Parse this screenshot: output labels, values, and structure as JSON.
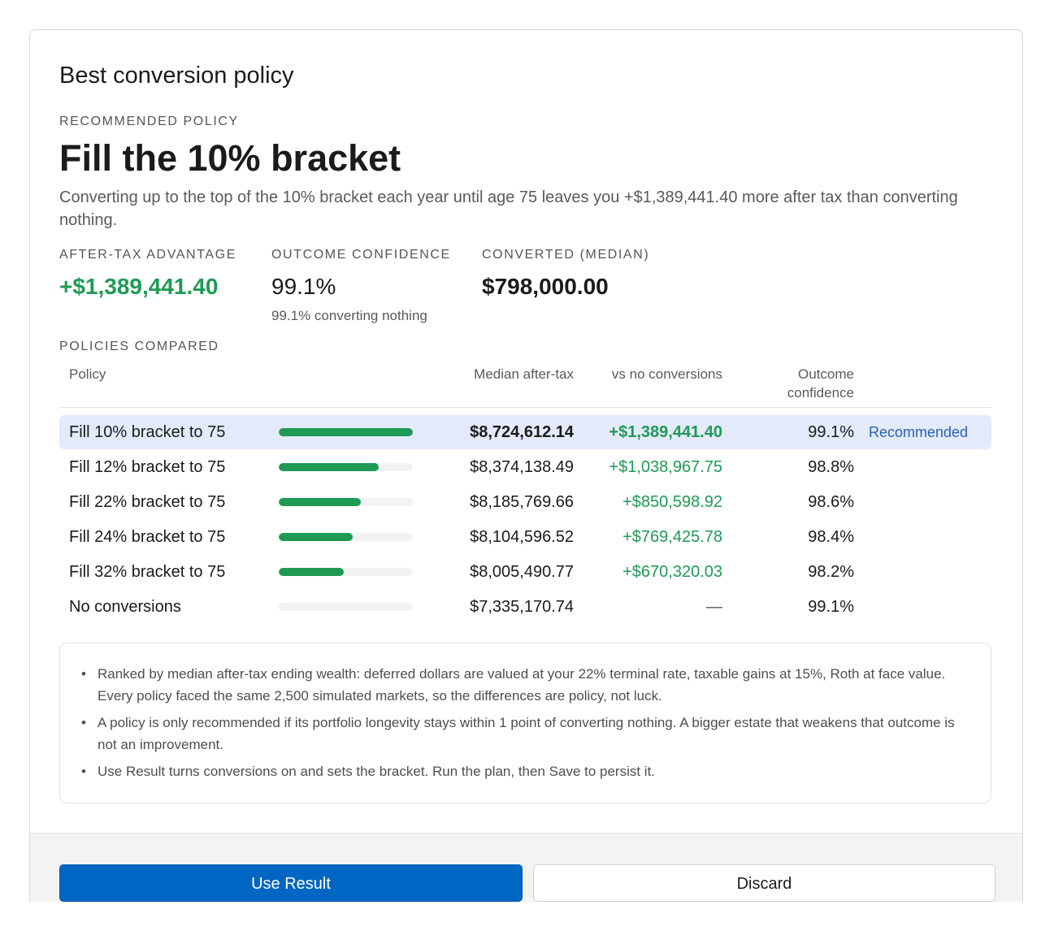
{
  "dialog": {
    "title": "Best conversion policy"
  },
  "recommendation": {
    "eyebrow": "RECOMMENDED POLICY",
    "title": "Fill the 10% bracket",
    "description": "Converting up to the top of the 10% bracket each year until age 75 leaves you +$1,389,441.40 more after tax than converting nothing."
  },
  "metrics": {
    "advantage": {
      "label": "AFTER-TAX ADVANTAGE",
      "value": "+$1,389,441.40"
    },
    "confidence": {
      "label": "OUTCOME CONFIDENCE",
      "value": "99.1%",
      "sub": "99.1% converting nothing"
    },
    "converted": {
      "label": "CONVERTED (MEDIAN)",
      "value": "$798,000.00"
    }
  },
  "table": {
    "eyebrow": "POLICIES COMPARED",
    "headers": {
      "policy": "Policy",
      "median": "Median after-tax",
      "vs": "vs no conversions",
      "confidence_line1": "Outcome",
      "confidence_line2": "confidence"
    },
    "rows": [
      {
        "name": "Fill 10% bracket to 75",
        "bar": 1.0,
        "median": "$8,724,612.14",
        "vs": "+$1,389,441.40",
        "confidence": "99.1%",
        "badge": "Recommended"
      },
      {
        "name": "Fill 12% bracket to 75",
        "bar": 0.748,
        "median": "$8,374,138.49",
        "vs": "+$1,038,967.75",
        "confidence": "98.8%",
        "badge": ""
      },
      {
        "name": "Fill 22% bracket to 75",
        "bar": 0.612,
        "median": "$8,185,769.66",
        "vs": "+$850,598.92",
        "confidence": "98.6%",
        "badge": ""
      },
      {
        "name": "Fill 24% bracket to 75",
        "bar": 0.554,
        "median": "$8,104,596.52",
        "vs": "+$769,425.78",
        "confidence": "98.4%",
        "badge": ""
      },
      {
        "name": "Fill 32% bracket to 75",
        "bar": 0.483,
        "median": "$8,005,490.77",
        "vs": "+$670,320.03",
        "confidence": "98.2%",
        "badge": ""
      },
      {
        "name": "No conversions",
        "bar": 0.0,
        "median": "$7,335,170.74",
        "vs": "—",
        "confidence": "99.1%",
        "badge": ""
      }
    ]
  },
  "notes": [
    "Ranked by median after-tax ending wealth: deferred dollars are valued at your 22% terminal rate, taxable gains at 15%, Roth at face value. Every policy faced the same 2,500 simulated markets, so the differences are policy, not luck.",
    "A policy is only recommended if its portfolio longevity stays within 1 point of converting nothing. A bigger estate that weakens that outcome is not an improvement.",
    "Use Result turns conversions on and sets the bracket. Run the plan, then Save to persist it."
  ],
  "footer": {
    "use_label": "Use Result",
    "discard_label": "Discard"
  },
  "colors": {
    "accent": "#0066c4",
    "positive": "#1e9a55",
    "highlight_row": "#e3ebfa",
    "badge": "#2a5fb5"
  }
}
